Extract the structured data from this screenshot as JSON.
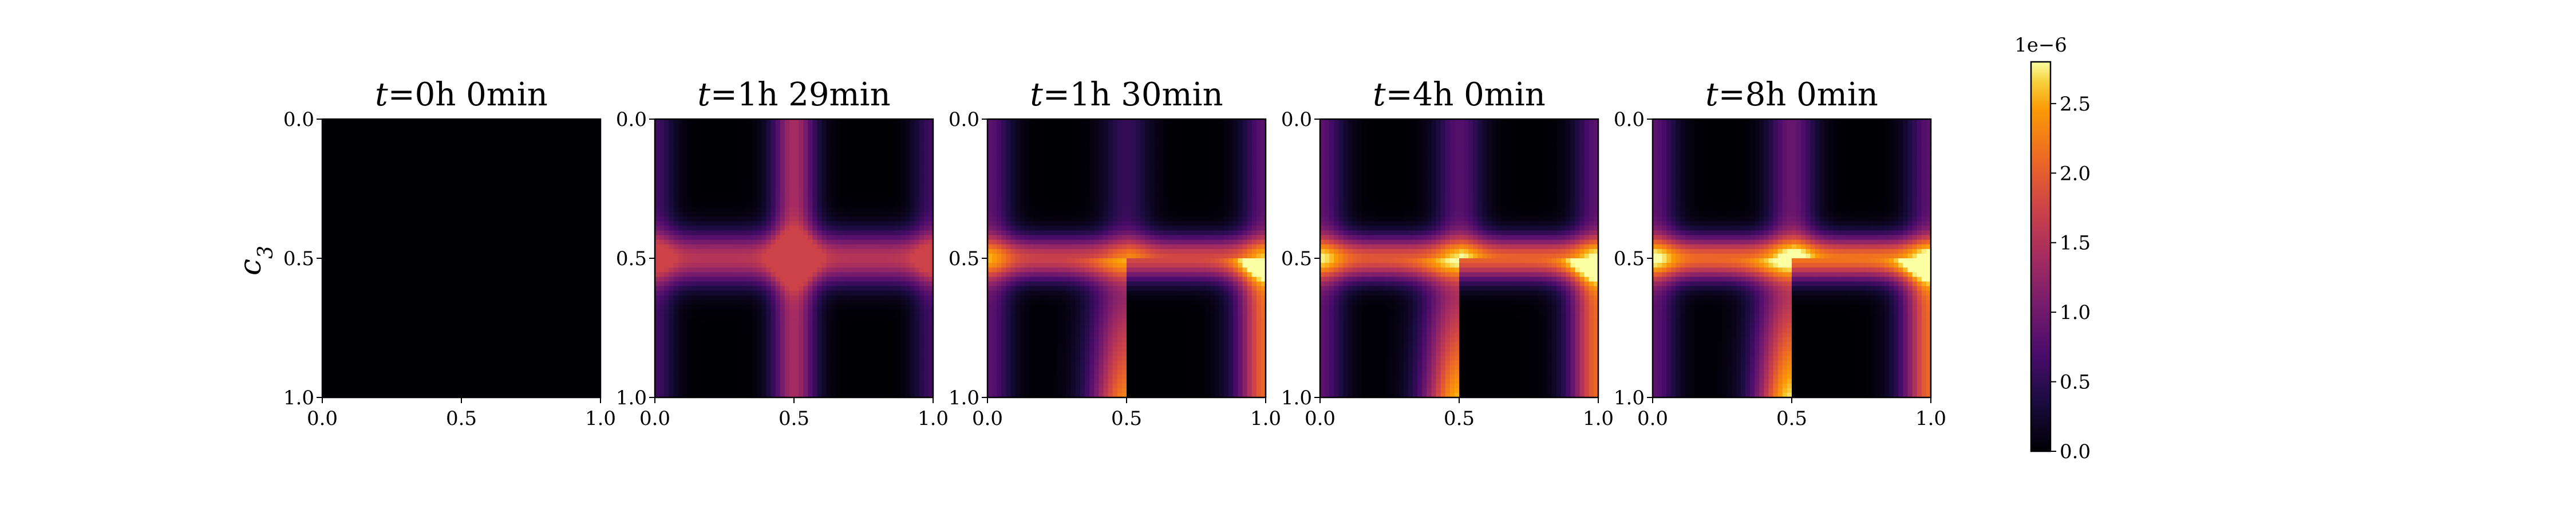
{
  "chart_data": {
    "type": "heatmap",
    "colormap": "inferno",
    "panels": [
      {
        "title_var": "t",
        "title_eq": "=",
        "title_value": "0h 0min",
        "pattern": "zero"
      },
      {
        "title_var": "t",
        "title_eq": "=",
        "title_value": "1h 29min",
        "pattern": "cross"
      },
      {
        "title_var": "t",
        "title_eq": "=",
        "title_value": "1h 30min",
        "pattern": "split",
        "intensity": 0.55
      },
      {
        "title_var": "t",
        "title_eq": "=",
        "title_value": "4h 0min",
        "pattern": "split",
        "intensity": 0.8
      },
      {
        "title_var": "t",
        "title_eq": "=",
        "title_value": "8h 0min",
        "pattern": "split",
        "intensity": 0.95
      }
    ],
    "x_ticks": [
      "0.0",
      "0.5",
      "1.0"
    ],
    "y_ticks": [
      "0.0",
      "0.5",
      "1.0"
    ],
    "xlim": [
      0.0,
      1.0
    ],
    "ylim": [
      1.0,
      0.0
    ],
    "ylabel": "c",
    "ylabel_sub": "3",
    "colorbar": {
      "min": 0.0,
      "max": 2.8e-06,
      "offset_label": "1e−6",
      "ticks": [
        "0.0",
        "0.5",
        "1.0",
        "1.5",
        "2.0",
        "2.5"
      ]
    }
  }
}
